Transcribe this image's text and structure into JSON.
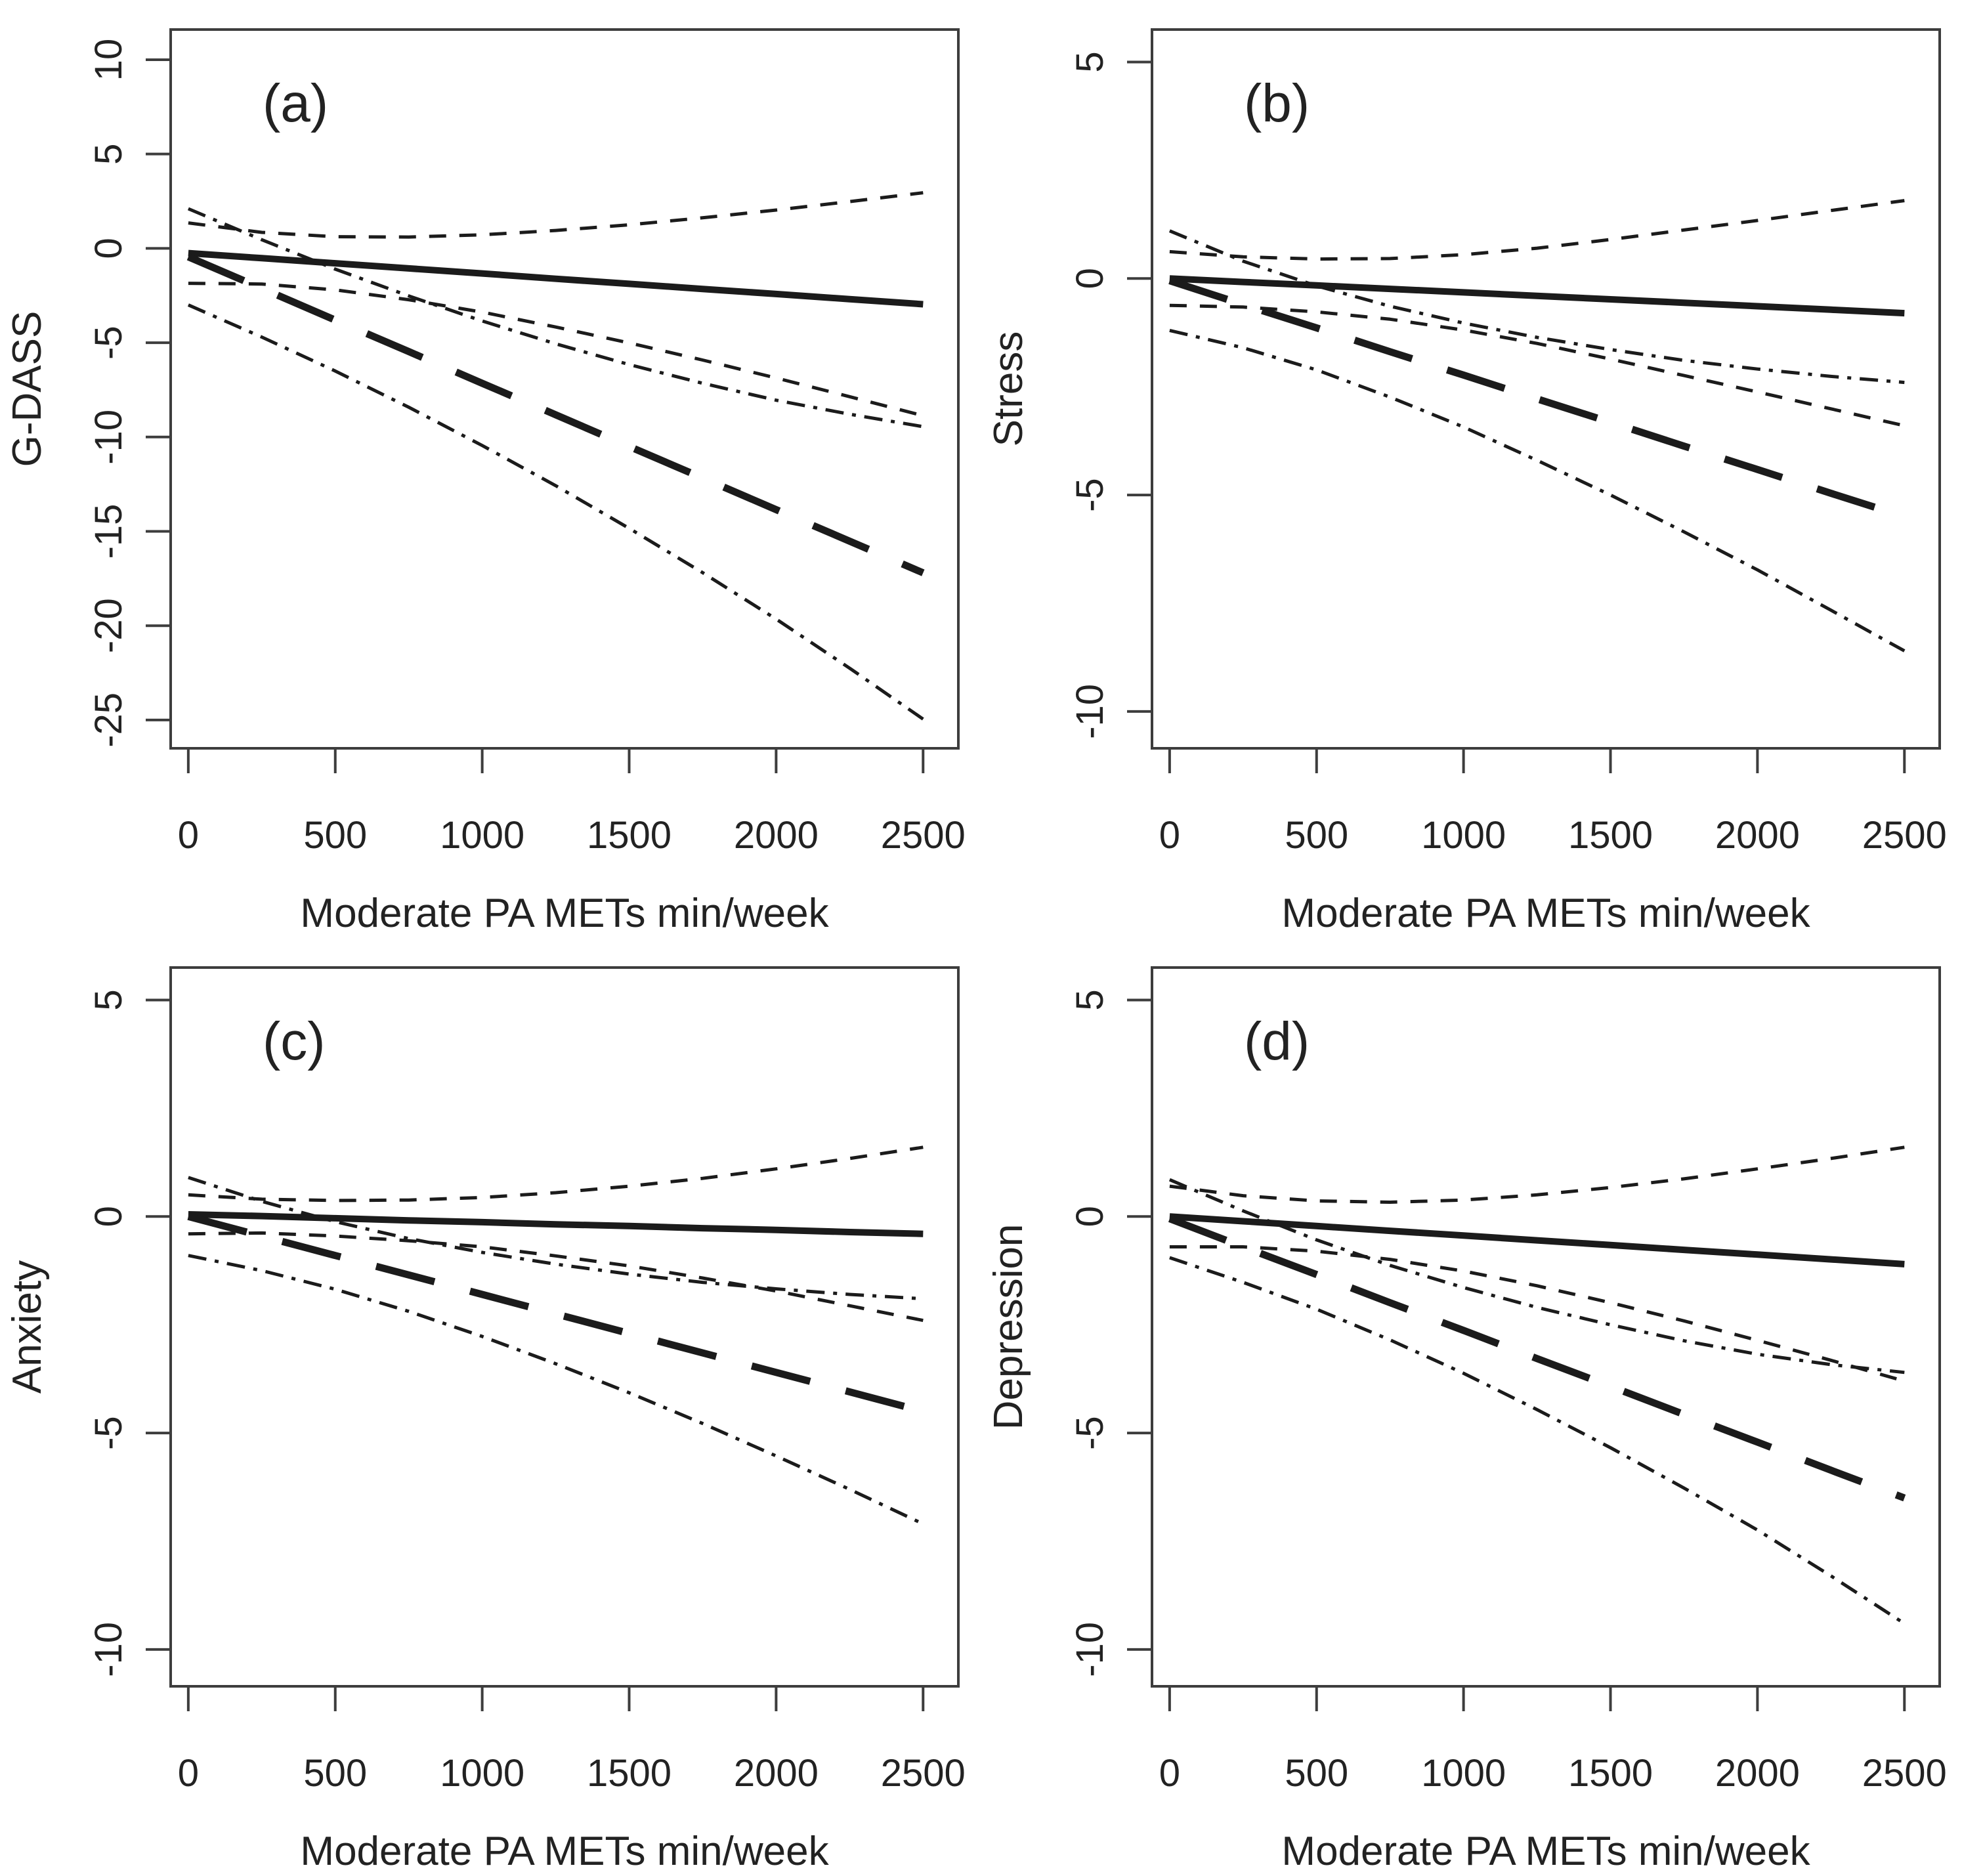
{
  "figure": {
    "background": "#ffffff",
    "line_color": "#1b1b1b",
    "axis_color": "#3d3d3d",
    "text_color": "#222222",
    "xlabel": "Moderate PA METs min/week"
  },
  "chart_data": [
    {
      "type": "line",
      "tag": "(a)",
      "title": "",
      "xlabel": "Moderate PA METs min/week",
      "ylabel": "G-DASS",
      "x_ticks": [
        0,
        500,
        1000,
        1500,
        2000,
        2500
      ],
      "y_ticks": [
        10,
        5,
        0,
        -5,
        -10,
        -15,
        -20,
        -25
      ],
      "xlim": [
        -60,
        2620
      ],
      "ylim": [
        -26.5,
        11.6
      ],
      "grid": false,
      "legend": "none",
      "x": [
        0,
        250,
        500,
        750,
        1000,
        1250,
        1500,
        1750,
        2000,
        2250,
        2500
      ],
      "series": [
        {
          "name": "fit-solid",
          "linestyle": "solid",
          "values": [
            -0.25,
            -0.52,
            -0.79,
            -1.06,
            -1.33,
            -1.61,
            -1.88,
            -2.15,
            -2.42,
            -2.69,
            -2.96
          ]
        },
        {
          "name": "fit-solid-ci-upper",
          "linestyle": "shortdash",
          "values": [
            1.35,
            0.85,
            0.62,
            0.6,
            0.72,
            0.95,
            1.25,
            1.62,
            2.03,
            2.48,
            2.95
          ]
        },
        {
          "name": "fit-solid-ci-lower",
          "linestyle": "shortdash",
          "values": [
            -1.85,
            -1.89,
            -2.2,
            -2.72,
            -3.38,
            -4.17,
            -5.01,
            -5.92,
            -6.87,
            -7.86,
            -8.87
          ]
        },
        {
          "name": "fit-longdash",
          "linestyle": "longdash",
          "values": [
            -0.45,
            -2.12,
            -3.8,
            -5.47,
            -7.15,
            -8.82,
            -10.5,
            -12.17,
            -13.85,
            -15.52,
            -17.2
          ]
        },
        {
          "name": "fit-longdash-ci-upper",
          "linestyle": "dashdot",
          "values": [
            2.1,
            0.46,
            -1.1,
            -2.52,
            -3.85,
            -5.06,
            -6.16,
            -7.15,
            -8.05,
            -8.79,
            -9.45
          ]
        },
        {
          "name": "fit-longdash-ci-lower",
          "linestyle": "dashdot",
          "values": [
            -3.0,
            -4.7,
            -6.5,
            -8.42,
            -10.45,
            -12.58,
            -14.84,
            -17.19,
            -19.65,
            -22.25,
            -24.95
          ]
        }
      ]
    },
    {
      "type": "line",
      "tag": "(b)",
      "title": "",
      "xlabel": "Moderate PA METs min/week",
      "ylabel": "Stress",
      "x_ticks": [
        0,
        500,
        1000,
        1500,
        2000,
        2500
      ],
      "y_ticks": [
        5,
        0,
        -5,
        -10
      ],
      "xlim": [
        -60,
        2620
      ],
      "ylim": [
        -10.85,
        5.75
      ],
      "grid": false,
      "legend": "none",
      "x": [
        0,
        250,
        500,
        750,
        1000,
        1250,
        1500,
        1750,
        2000,
        2250,
        2500
      ],
      "series": [
        {
          "name": "fit-solid",
          "linestyle": "solid",
          "values": [
            0.0,
            -0.08,
            -0.16,
            -0.24,
            -0.32,
            -0.4,
            -0.48,
            -0.56,
            -0.64,
            -0.72,
            -0.8
          ]
        },
        {
          "name": "fit-solid-ci-upper",
          "linestyle": "shortdash",
          "values": [
            0.62,
            0.5,
            0.45,
            0.46,
            0.55,
            0.7,
            0.9,
            1.12,
            1.34,
            1.57,
            1.8
          ]
        },
        {
          "name": "fit-solid-ci-lower",
          "linestyle": "shortdash",
          "values": [
            -0.62,
            -0.66,
            -0.77,
            -0.94,
            -1.19,
            -1.5,
            -1.86,
            -2.24,
            -2.62,
            -3.01,
            -3.4
          ]
        },
        {
          "name": "fit-longdash",
          "linestyle": "longdash",
          "values": [
            -0.05,
            -0.6,
            -1.14,
            -1.69,
            -2.23,
            -2.78,
            -3.32,
            -3.87,
            -4.41,
            -4.96,
            -5.5
          ]
        },
        {
          "name": "fit-longdash-ci-upper",
          "linestyle": "dashdot",
          "values": [
            1.1,
            0.4,
            -0.17,
            -0.64,
            -1.03,
            -1.36,
            -1.64,
            -1.89,
            -2.09,
            -2.26,
            -2.4
          ]
        },
        {
          "name": "fit-longdash-ci-lower",
          "linestyle": "dashdot",
          "values": [
            -1.2,
            -1.6,
            -2.11,
            -2.74,
            -3.43,
            -4.2,
            -5.0,
            -5.85,
            -6.73,
            -7.66,
            -8.6
          ]
        }
      ]
    },
    {
      "type": "line",
      "tag": "(c)",
      "title": "",
      "xlabel": "Moderate PA METs min/week",
      "ylabel": "Anxiety",
      "x_ticks": [
        0,
        500,
        1000,
        1500,
        2000,
        2500
      ],
      "y_ticks": [
        5,
        0,
        -5,
        -10
      ],
      "xlim": [
        -60,
        2620
      ],
      "ylim": [
        -10.85,
        5.75
      ],
      "grid": false,
      "legend": "none",
      "x": [
        0,
        250,
        500,
        750,
        1000,
        1250,
        1500,
        1750,
        2000,
        2250,
        2500
      ],
      "series": [
        {
          "name": "fit-solid",
          "linestyle": "solid",
          "values": [
            0.05,
            0.01,
            -0.04,
            -0.09,
            -0.13,
            -0.18,
            -0.22,
            -0.27,
            -0.31,
            -0.36,
            -0.4
          ]
        },
        {
          "name": "fit-solid-ci-upper",
          "linestyle": "shortdash",
          "values": [
            0.5,
            0.4,
            0.37,
            0.38,
            0.44,
            0.55,
            0.7,
            0.88,
            1.1,
            1.34,
            1.6
          ]
        },
        {
          "name": "fit-solid-ci-lower",
          "linestyle": "shortdash",
          "values": [
            -0.4,
            -0.38,
            -0.45,
            -0.56,
            -0.7,
            -0.91,
            -1.14,
            -1.42,
            -1.72,
            -2.06,
            -2.4
          ]
        },
        {
          "name": "fit-longdash",
          "linestyle": "longdash",
          "values": [
            0.0,
            -0.45,
            -0.9,
            -1.35,
            -1.8,
            -2.25,
            -2.7,
            -3.15,
            -3.6,
            -4.05,
            -4.5
          ]
        },
        {
          "name": "fit-longdash-ci-upper",
          "linestyle": "dashdot",
          "values": [
            0.9,
            0.35,
            -0.12,
            -0.51,
            -0.83,
            -1.1,
            -1.33,
            -1.52,
            -1.67,
            -1.8,
            -1.9
          ]
        },
        {
          "name": "fit-longdash-ci-lower",
          "linestyle": "dashdot",
          "values": [
            -0.9,
            -1.25,
            -1.68,
            -2.19,
            -2.77,
            -3.4,
            -4.07,
            -4.78,
            -5.53,
            -6.3,
            -7.1
          ]
        }
      ]
    },
    {
      "type": "line",
      "tag": "(d)",
      "title": "",
      "xlabel": "Moderate PA METs min/week",
      "ylabel": "Depression",
      "x_ticks": [
        0,
        500,
        1000,
        1500,
        2000,
        2500
      ],
      "y_ticks": [
        5,
        0,
        -5,
        -10
      ],
      "xlim": [
        -60,
        2620
      ],
      "ylim": [
        -10.85,
        5.75
      ],
      "grid": false,
      "legend": "none",
      "x": [
        0,
        250,
        500,
        750,
        1000,
        1250,
        1500,
        1750,
        2000,
        2250,
        2500
      ],
      "series": [
        {
          "name": "fit-solid",
          "linestyle": "solid",
          "values": [
            0.0,
            -0.11,
            -0.22,
            -0.33,
            -0.44,
            -0.55,
            -0.66,
            -0.77,
            -0.88,
            -0.99,
            -1.1
          ]
        },
        {
          "name": "fit-solid-ci-upper",
          "linestyle": "shortdash",
          "values": [
            0.7,
            0.48,
            0.36,
            0.33,
            0.38,
            0.5,
            0.67,
            0.87,
            1.1,
            1.34,
            1.6
          ]
        },
        {
          "name": "fit-solid-ci-lower",
          "linestyle": "shortdash",
          "values": [
            -0.7,
            -0.7,
            -0.8,
            -0.99,
            -1.26,
            -1.6,
            -1.99,
            -2.41,
            -2.86,
            -3.32,
            -3.8
          ]
        },
        {
          "name": "fit-longdash",
          "linestyle": "longdash",
          "values": [
            -0.05,
            -0.7,
            -1.34,
            -1.99,
            -2.63,
            -3.28,
            -3.92,
            -4.57,
            -5.21,
            -5.86,
            -6.5
          ]
        },
        {
          "name": "fit-longdash-ci-upper",
          "linestyle": "dashdot",
          "values": [
            0.85,
            0.13,
            -0.54,
            -1.13,
            -1.64,
            -2.1,
            -2.5,
            -2.87,
            -3.18,
            -3.42,
            -3.6
          ]
        },
        {
          "name": "fit-longdash-ci-lower",
          "linestyle": "dashdot",
          "values": [
            -0.95,
            -1.52,
            -2.14,
            -2.85,
            -3.62,
            -4.46,
            -5.34,
            -6.27,
            -7.24,
            -8.3,
            -9.4
          ]
        }
      ]
    }
  ]
}
